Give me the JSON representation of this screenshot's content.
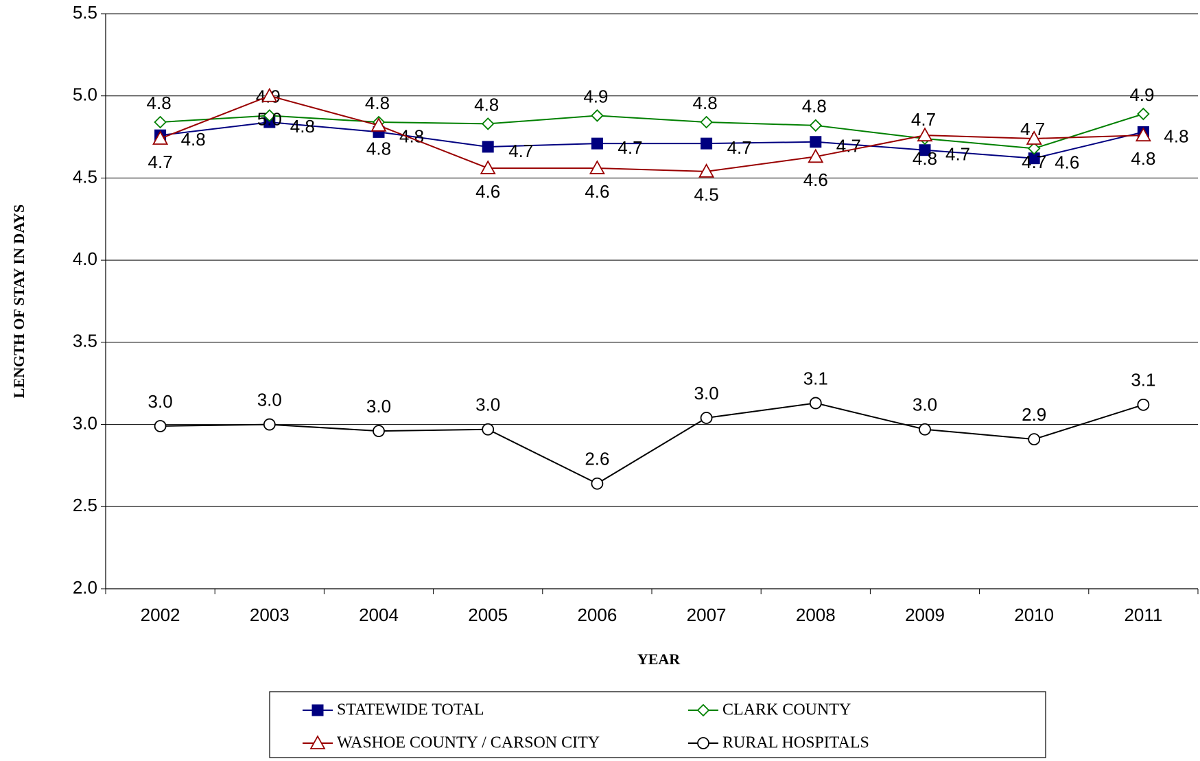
{
  "chart_data": {
    "type": "line",
    "x_label": "YEAR",
    "y_label": "LENGTH OF STAY IN DAYS",
    "categories": [
      "2002",
      "2003",
      "2004",
      "2005",
      "2006",
      "2007",
      "2008",
      "2009",
      "2010",
      "2011"
    ],
    "ylim": [
      2,
      5.5
    ],
    "yticks": [
      {
        "value": 2,
        "label": "2.0"
      },
      2.5,
      {
        "value": 3,
        "label": "3.0"
      },
      3.5,
      {
        "value": 4,
        "label": "4.0"
      },
      4.5,
      {
        "value": 5,
        "label": "5.0"
      },
      5.5
    ],
    "grid": true,
    "legend": "bottom",
    "series": [
      {
        "name": "STATEWIDE TOTAL",
        "color": "#000080",
        "marker": "square",
        "values": [
          4.76,
          4.84,
          4.78,
          4.69,
          4.71,
          4.71,
          4.72,
          4.67,
          4.62,
          4.78
        ],
        "value_labels": [
          "4.8",
          "4.8",
          "4.8",
          "4.7",
          "4.7",
          "4.7",
          "4.7",
          "4.7",
          "4.6",
          "4.8"
        ]
      },
      {
        "name": "CLARK COUNTY",
        "color": "#008000",
        "marker": "diamond",
        "values": [
          4.84,
          4.88,
          4.84,
          4.83,
          4.88,
          4.84,
          4.82,
          4.74,
          4.68,
          4.89
        ],
        "value_labels": [
          "4.8",
          "4.9",
          "4.8",
          "4.8",
          "4.9",
          "4.8",
          "4.8",
          "4.7",
          "4.7",
          "4.9"
        ]
      },
      {
        "name": "WASHOE COUNTY / CARSON CITY",
        "color": "#990000",
        "marker": "triangle",
        "values": [
          4.74,
          5.0,
          4.82,
          4.56,
          4.56,
          4.54,
          4.63,
          4.76,
          4.74,
          4.76
        ],
        "value_labels": [
          "4.7",
          "5.0",
          "4.8",
          "4.6",
          "4.6",
          "4.5",
          "4.6",
          "4.8",
          "4.7",
          "4.8"
        ]
      },
      {
        "name": "RURAL HOSPITALS",
        "color": "#000000",
        "marker": "circle",
        "values": [
          2.99,
          3.0,
          2.96,
          2.97,
          2.64,
          3.04,
          3.13,
          2.97,
          2.91,
          3.12
        ],
        "value_labels": [
          "3.0",
          "3.0",
          "3.0",
          "3.0",
          "2.6",
          "3.0",
          "3.1",
          "3.0",
          "2.9",
          "3.1"
        ]
      }
    ]
  }
}
